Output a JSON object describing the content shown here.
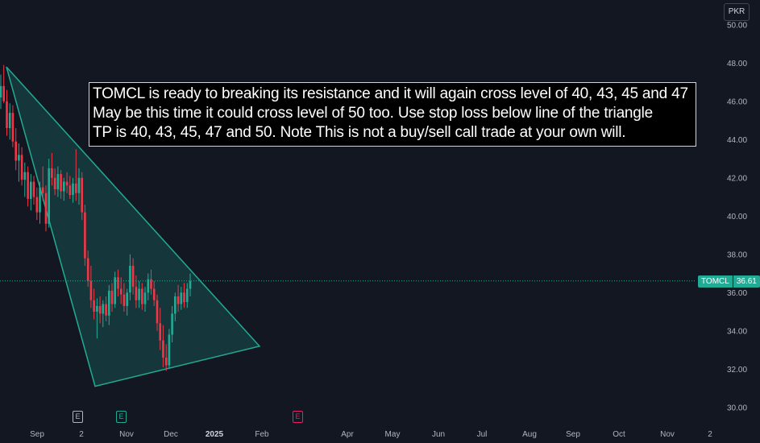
{
  "currency_label": "PKR",
  "annotation": {
    "lines": [
      "TOMCL is ready to breaking its resistance and it will again cross level of 40, 43, 45 and 47",
      "May be this time it could cross level of 50 too. Use stop loss below line of the triangle",
      "TP is 40, 43, 45, 47 and 50. Note This is not a buy/sell call trade at your own will."
    ]
  },
  "last_price": {
    "symbol": "TOMCL",
    "value": "36.61"
  },
  "event_markers": [
    {
      "label": "E",
      "color": "#b2b5be"
    },
    {
      "label": "E",
      "color": "#22ab94"
    },
    {
      "label": "E",
      "color": "#e91e63"
    }
  ],
  "colors": {
    "up": "#22ab94",
    "down": "#f23645",
    "triangle_fill": "rgba(34,171,148,0.22)",
    "triangle_stroke": "#22ab94"
  },
  "chart_data": {
    "type": "candlestick",
    "symbol": "TOMCL",
    "currency": "PKR",
    "ylim": [
      29.4,
      51.3
    ],
    "y_ticks": [
      "30.00",
      "32.00",
      "34.00",
      "36.00",
      "38.00",
      "40.00",
      "42.00",
      "44.00",
      "46.00",
      "48.00",
      "50.00"
    ],
    "x_ticks": [
      "Sep",
      "2",
      "Nov",
      "Dec",
      "2025",
      "Feb",
      "Apr",
      "May",
      "Jun",
      "Jul",
      "Aug",
      "Sep",
      "Oct",
      "Nov",
      "2"
    ],
    "x_ticks_bold": [
      "2025"
    ],
    "grid": false,
    "candles": [
      [
        46.2,
        47.4,
        45.6,
        46.8
      ],
      [
        46.8,
        47.9,
        45.9,
        46.0
      ],
      [
        46.0,
        46.6,
        44.2,
        44.6
      ],
      [
        44.6,
        45.9,
        44.0,
        45.4
      ],
      [
        45.4,
        45.8,
        43.6,
        43.9
      ],
      [
        43.9,
        44.6,
        42.4,
        42.9
      ],
      [
        42.9,
        43.8,
        41.8,
        43.2
      ],
      [
        43.2,
        43.6,
        41.6,
        41.9
      ],
      [
        41.9,
        42.8,
        41.0,
        42.3
      ],
      [
        42.3,
        42.6,
        40.5,
        40.9
      ],
      [
        40.9,
        42.2,
        40.3,
        41.8
      ],
      [
        41.8,
        42.1,
        40.6,
        41.0
      ],
      [
        41.0,
        41.5,
        39.8,
        40.2
      ],
      [
        40.2,
        41.8,
        39.6,
        41.5
      ],
      [
        41.5,
        42.6,
        40.8,
        41.2
      ],
      [
        41.2,
        41.6,
        39.2,
        39.6
      ],
      [
        39.6,
        43.0,
        39.4,
        42.5
      ],
      [
        42.5,
        43.3,
        41.6,
        42.0
      ],
      [
        42.0,
        42.5,
        41.1,
        41.4
      ],
      [
        41.4,
        42.6,
        41.0,
        42.2
      ],
      [
        42.2,
        42.4,
        40.9,
        41.3
      ],
      [
        41.3,
        42.0,
        40.8,
        41.8
      ],
      [
        41.8,
        42.3,
        41.2,
        41.6
      ],
      [
        41.6,
        42.1,
        40.9,
        41.1
      ],
      [
        41.1,
        42.0,
        40.7,
        41.7
      ],
      [
        41.7,
        43.5,
        40.8,
        41.2
      ],
      [
        41.2,
        42.5,
        40.6,
        42.0
      ],
      [
        42.0,
        42.3,
        39.8,
        40.2
      ],
      [
        40.2,
        40.6,
        37.4,
        37.8
      ],
      [
        37.8,
        38.2,
        36.3,
        36.6
      ],
      [
        36.6,
        37.4,
        35.2,
        35.6
      ],
      [
        35.6,
        36.2,
        34.6,
        35.0
      ],
      [
        35.0,
        35.7,
        33.6,
        35.3
      ],
      [
        35.3,
        35.8,
        34.4,
        34.9
      ],
      [
        34.9,
        35.6,
        34.2,
        35.4
      ],
      [
        35.4,
        35.8,
        34.5,
        34.8
      ],
      [
        34.8,
        36.4,
        34.3,
        36.1
      ],
      [
        36.1,
        36.5,
        35.0,
        35.4
      ],
      [
        35.4,
        37.1,
        35.2,
        36.8
      ],
      [
        36.8,
        37.2,
        35.8,
        36.2
      ],
      [
        36.2,
        36.8,
        35.4,
        35.9
      ],
      [
        35.9,
        36.5,
        35.0,
        35.3
      ],
      [
        35.3,
        36.2,
        34.8,
        36.0
      ],
      [
        36.0,
        38.0,
        35.6,
        37.4
      ],
      [
        37.4,
        37.8,
        35.9,
        36.3
      ],
      [
        36.3,
        36.9,
        35.2,
        35.6
      ],
      [
        35.6,
        36.6,
        35.2,
        36.2
      ],
      [
        36.2,
        36.5,
        35.1,
        35.4
      ],
      [
        35.4,
        36.3,
        35.0,
        36.0
      ],
      [
        36.0,
        37.0,
        35.6,
        36.7
      ],
      [
        36.7,
        37.2,
        35.9,
        36.2
      ],
      [
        36.2,
        36.6,
        35.3,
        35.6
      ],
      [
        35.6,
        35.9,
        34.0,
        34.4
      ],
      [
        34.4,
        35.2,
        33.0,
        33.5
      ],
      [
        33.5,
        34.3,
        32.1,
        32.6
      ],
      [
        32.6,
        33.3,
        31.9,
        32.2
      ],
      [
        32.2,
        34.1,
        32.0,
        33.8
      ],
      [
        33.8,
        35.3,
        33.4,
        34.9
      ],
      [
        34.9,
        36.0,
        34.5,
        35.8
      ],
      [
        35.8,
        36.4,
        35.0,
        35.4
      ],
      [
        35.4,
        36.3,
        35.1,
        36.0
      ],
      [
        36.0,
        36.5,
        35.2,
        35.5
      ],
      [
        35.5,
        36.5,
        35.2,
        36.2
      ],
      [
        36.2,
        37.0,
        35.8,
        36.61
      ]
    ],
    "triangle": [
      [
        "Jul-2024",
        47.8
      ],
      [
        "Oct-2024",
        31.1
      ],
      [
        "Feb-2025",
        33.2
      ]
    ],
    "last_price": 36.61
  }
}
